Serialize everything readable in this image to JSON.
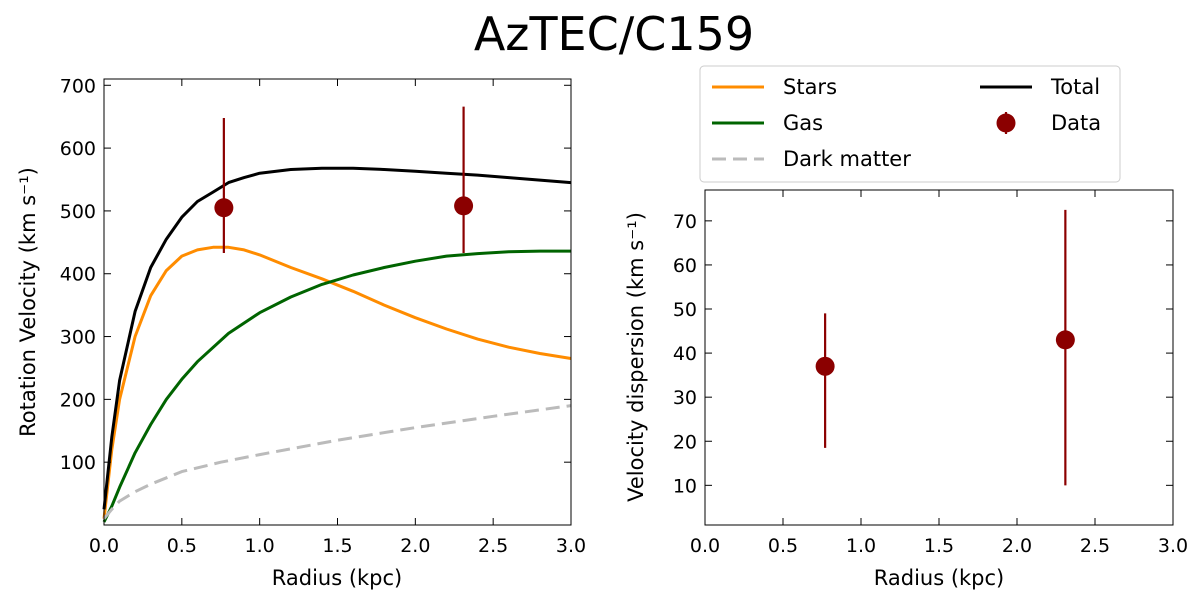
{
  "title": "AzTEC/C159",
  "colors": {
    "stars": "#ff8c00",
    "gas": "#006400",
    "dark_matter": "#bbbbbb",
    "total": "#000000",
    "data": "#8b0000"
  },
  "chart_data": [
    {
      "type": "line",
      "panel": "left",
      "xlabel": "Radius (kpc)",
      "ylabel": "Rotation Velocity (km s⁻¹)",
      "xlim": [
        0.0,
        3.0
      ],
      "ylim": [
        0,
        710
      ],
      "xticks": [
        0.0,
        0.5,
        1.0,
        1.5,
        2.0,
        2.5,
        3.0
      ],
      "xtick_labels": [
        "0.0",
        "0.5",
        "1.0",
        "1.5",
        "2.0",
        "2.5",
        "3.0"
      ],
      "yticks": [
        100,
        200,
        300,
        400,
        500,
        600,
        700
      ],
      "ytick_labels": [
        "100",
        "200",
        "300",
        "400",
        "500",
        "600",
        "700"
      ],
      "series": [
        {
          "name": "Stars",
          "color_key": "stars",
          "style": "solid",
          "x": [
            0.0,
            0.05,
            0.1,
            0.2,
            0.3,
            0.4,
            0.5,
            0.6,
            0.7,
            0.8,
            0.9,
            1.0,
            1.2,
            1.4,
            1.6,
            1.8,
            2.0,
            2.2,
            2.4,
            2.6,
            2.8,
            3.0
          ],
          "y": [
            10,
            120,
            200,
            300,
            365,
            405,
            428,
            438,
            442,
            442,
            438,
            430,
            410,
            392,
            372,
            350,
            330,
            312,
            296,
            283,
            273,
            265
          ]
        },
        {
          "name": "Gas",
          "color_key": "gas",
          "style": "solid",
          "x": [
            0.0,
            0.05,
            0.1,
            0.2,
            0.3,
            0.4,
            0.5,
            0.6,
            0.8,
            1.0,
            1.2,
            1.4,
            1.6,
            1.8,
            2.0,
            2.2,
            2.4,
            2.6,
            2.8,
            3.0
          ],
          "y": [
            5,
            30,
            60,
            115,
            160,
            200,
            232,
            260,
            305,
            338,
            363,
            383,
            398,
            410,
            420,
            428,
            432,
            435,
            436,
            436
          ]
        },
        {
          "name": "Dark matter",
          "color_key": "dark_matter",
          "style": "dashed",
          "x": [
            0.0,
            0.05,
            0.1,
            0.2,
            0.3,
            0.5,
            0.75,
            1.0,
            1.5,
            2.0,
            2.5,
            3.0
          ],
          "y": [
            10,
            25,
            38,
            53,
            65,
            85,
            100,
            112,
            135,
            155,
            173,
            190
          ]
        },
        {
          "name": "Total",
          "color_key": "total",
          "style": "solid",
          "x": [
            0.0,
            0.05,
            0.1,
            0.2,
            0.3,
            0.4,
            0.5,
            0.6,
            0.7,
            0.8,
            0.9,
            1.0,
            1.2,
            1.4,
            1.6,
            1.8,
            2.0,
            2.2,
            2.4,
            2.6,
            2.8,
            3.0
          ],
          "y": [
            25,
            140,
            230,
            340,
            410,
            455,
            490,
            515,
            530,
            545,
            553,
            560,
            566,
            568,
            568,
            566,
            563,
            560,
            557,
            553,
            549,
            545
          ]
        }
      ],
      "data_points": [
        {
          "x": 0.77,
          "y": 505,
          "yerr_low": 433,
          "yerr_high": 648
        },
        {
          "x": 2.31,
          "y": 508,
          "yerr_low": 433,
          "yerr_high": 666
        }
      ]
    },
    {
      "type": "scatter",
      "panel": "right",
      "xlabel": "Radius (kpc)",
      "ylabel": "Velocity dispersion (km s⁻¹)",
      "xlim": [
        0.0,
        3.0
      ],
      "ylim": [
        1,
        77
      ],
      "xticks": [
        0.0,
        0.5,
        1.0,
        1.5,
        2.0,
        2.5,
        3.0
      ],
      "xtick_labels": [
        "0.0",
        "0.5",
        "1.0",
        "1.5",
        "2.0",
        "2.5",
        "3.0"
      ],
      "yticks": [
        10,
        20,
        30,
        40,
        50,
        60,
        70
      ],
      "ytick_labels": [
        "10",
        "20",
        "30",
        "40",
        "50",
        "60",
        "70"
      ],
      "data_points": [
        {
          "x": 0.77,
          "y": 37,
          "yerr_low": 18.5,
          "yerr_high": 49
        },
        {
          "x": 2.31,
          "y": 43,
          "yerr_low": 10,
          "yerr_high": 72.5
        }
      ]
    }
  ],
  "legend": {
    "entries": [
      {
        "label": "Stars",
        "color_key": "stars",
        "kind": "line"
      },
      {
        "label": "Gas",
        "color_key": "gas",
        "kind": "line"
      },
      {
        "label": "Dark matter",
        "color_key": "dark_matter",
        "kind": "dashed"
      },
      {
        "label": "Total",
        "color_key": "total",
        "kind": "line"
      },
      {
        "label": "Data",
        "color_key": "data",
        "kind": "marker"
      }
    ]
  }
}
